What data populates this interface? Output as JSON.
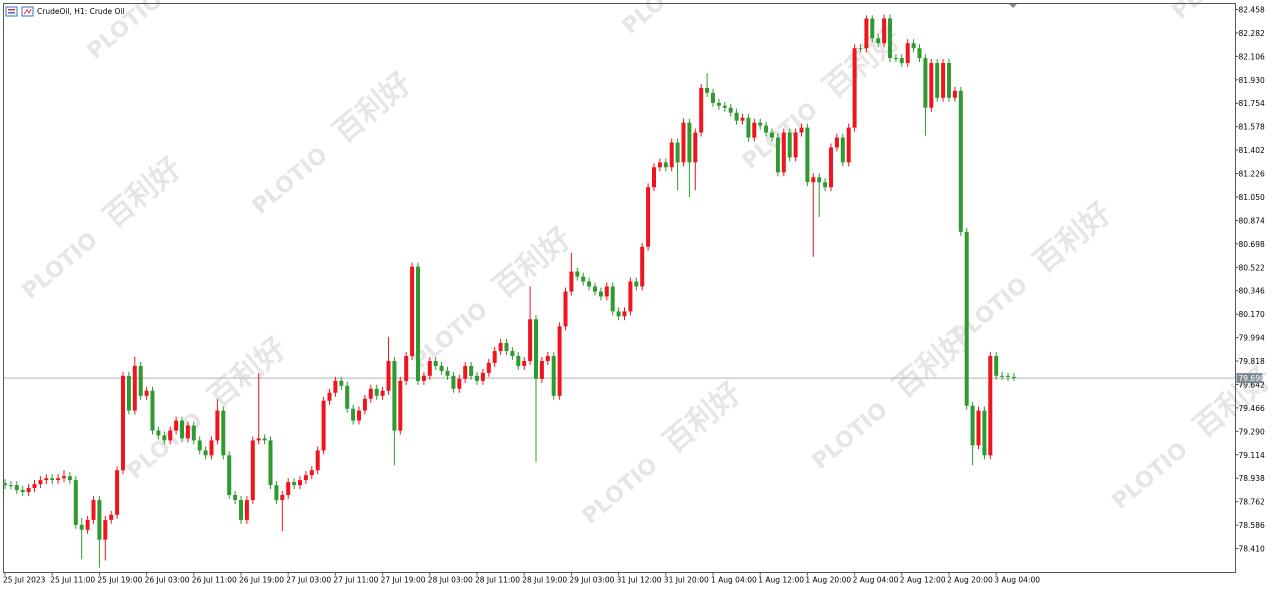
{
  "chart_data": {
    "type": "candlestick",
    "title": "CrudeOil, H1:  Crude Oil",
    "watermarks": [
      "PLOTIO",
      "百利好"
    ],
    "up_color": "#f0141e",
    "down_color": "#2f9a2f",
    "current_price": {
      "value": 79.69,
      "label": "79.690"
    },
    "ylim": [
      78.23,
      82.503
    ],
    "yticks": [
      82.458,
      82.282,
      82.106,
      {
        "value": 81.93,
        "label": "81.930"
      },
      81.754,
      81.578,
      81.402,
      81.226,
      {
        "value": 81.05,
        "label": "81.050"
      },
      80.874,
      80.698,
      80.522,
      80.346,
      {
        "value": 80.17,
        "label": "80.170"
      },
      79.994,
      79.818,
      79.642,
      79.466,
      {
        "value": 79.29,
        "label": "79.290"
      },
      79.114,
      78.938,
      78.762,
      78.586,
      {
        "value": 78.41,
        "label": "78.410"
      }
    ],
    "grid": false,
    "categories": [
      "25 Jul 2023",
      null,
      null,
      null,
      null,
      null,
      null,
      null,
      "25 Jul 11:00",
      null,
      null,
      null,
      null,
      null,
      null,
      null,
      "25 Jul 19:00",
      null,
      null,
      null,
      null,
      null,
      null,
      null,
      "26 Jul 03:00",
      null,
      null,
      null,
      null,
      null,
      null,
      null,
      "26 Jul 11:00",
      null,
      null,
      null,
      null,
      null,
      null,
      null,
      "26 Jul 19:00",
      null,
      null,
      null,
      null,
      null,
      null,
      null,
      "27 Jul 03:00",
      null,
      null,
      null,
      null,
      null,
      null,
      null,
      "27 Jul 11:00",
      null,
      null,
      null,
      null,
      null,
      null,
      null,
      "27 Jul 19:00",
      null,
      null,
      null,
      null,
      null,
      null,
      null,
      "28 Jul 03:00",
      null,
      null,
      null,
      null,
      null,
      null,
      null,
      "28 Jul 11:00",
      null,
      null,
      null,
      null,
      null,
      null,
      null,
      "28 Jul 19:00",
      null,
      null,
      null,
      null,
      null,
      null,
      null,
      "29 Jul 03:00",
      null,
      null,
      null,
      null,
      null,
      null,
      null,
      "31 Jul 12:00",
      null,
      null,
      null,
      null,
      null,
      null,
      null,
      "31 Jul 20:00",
      null,
      null,
      null,
      null,
      null,
      null,
      null,
      "1 Aug 04:00",
      null,
      null,
      null,
      null,
      null,
      null,
      null,
      "1 Aug 12:00",
      null,
      null,
      null,
      null,
      null,
      null,
      null,
      "1 Aug 20:00",
      null,
      null,
      null,
      null,
      null,
      null,
      null,
      "2 Aug 04:00",
      null,
      null,
      null,
      null,
      null,
      null,
      null,
      "2 Aug 12:00",
      null,
      null,
      null,
      null,
      null,
      null,
      null,
      "2 Aug 20:00",
      null,
      null,
      null,
      null,
      null,
      null,
      null,
      "3 Aug 04:00",
      null,
      null,
      null
    ],
    "open": [
      78.9,
      78.886,
      78.886,
      78.849,
      78.834,
      78.864,
      78.894,
      78.924,
      78.938,
      78.924,
      78.938,
      78.953,
      78.924,
      78.588,
      78.551,
      78.625,
      78.774,
      78.476,
      78.625,
      78.663,
      78.998,
      79.707,
      79.446,
      79.781,
      79.557,
      79.595,
      79.296,
      79.259,
      79.222,
      79.296,
      79.371,
      79.237,
      79.334,
      79.222,
      79.147,
      79.11,
      79.222,
      79.446,
      79.11,
      78.812,
      78.774,
      78.625,
      78.774,
      79.222,
      79.237,
      79.222,
      78.886,
      78.774,
      78.812,
      78.909,
      78.886,
      78.924,
      78.961,
      78.998,
      79.147,
      79.52,
      79.58,
      79.669,
      79.632,
      79.46,
      79.371,
      79.446,
      79.535,
      79.61,
      79.557,
      79.595,
      79.818,
      79.296,
      79.669,
      79.856,
      80.527,
      79.669,
      79.707,
      79.818,
      79.781,
      79.744,
      79.707,
      79.61,
      79.684,
      79.781,
      79.707,
      79.669,
      79.729,
      79.804,
      79.893,
      79.953,
      79.893,
      79.856,
      79.781,
      79.818,
      80.132,
      79.684,
      79.818,
      79.856,
      79.557,
      80.079,
      80.34,
      80.49,
      80.452,
      80.415,
      80.378,
      80.34,
      80.303,
      80.378,
      80.191,
      80.154,
      80.191,
      80.415,
      80.378,
      80.676,
      81.123,
      81.273,
      81.31,
      81.273,
      81.459,
      81.31,
      81.608,
      81.31,
      81.534,
      81.869,
      81.832,
      81.757,
      81.735,
      81.72,
      81.683,
      81.623,
      81.645,
      81.496,
      81.608,
      81.586,
      81.534,
      81.496,
      81.235,
      81.534,
      81.347,
      81.534,
      81.571,
      81.161,
      81.198,
      81.161,
      81.123,
      81.422,
      81.496,
      81.31,
      81.571,
      82.167,
      82.167,
      82.391,
      82.242,
      82.205,
      82.391,
      82.093,
      82.093,
      82.056,
      82.205,
      82.167,
      82.093,
      81.72,
      82.056,
      81.795,
      82.056,
      81.795,
      81.847,
      80.788,
      79.483,
      79.185,
      79.446,
      79.11,
      79.856,
      79.707,
      79.707,
      79.699
    ],
    "high": [
      78.93,
      78.916,
      78.916,
      78.879,
      78.894,
      78.924,
      78.954,
      78.968,
      78.968,
      78.968,
      79.0,
      78.983,
      78.954,
      78.64,
      78.655,
      78.804,
      78.804,
      78.655,
      78.693,
      79.028,
      79.737,
      79.737,
      79.85,
      79.811,
      79.625,
      79.625,
      79.326,
      79.289,
      79.326,
      79.401,
      79.401,
      79.364,
      79.364,
      79.252,
      79.177,
      79.252,
      79.535,
      79.476,
      79.14,
      78.842,
      78.804,
      78.804,
      79.252,
      79.729,
      79.267,
      79.252,
      78.916,
      78.842,
      78.939,
      78.939,
      78.954,
      78.991,
      79.028,
      79.177,
      79.55,
      79.61,
      79.699,
      79.699,
      79.662,
      79.49,
      79.476,
      79.565,
      79.64,
      79.64,
      79.625,
      80.0,
      79.848,
      79.699,
      79.886,
      80.557,
      80.557,
      79.737,
      79.848,
      79.848,
      79.811,
      79.774,
      79.737,
      79.714,
      79.811,
      79.811,
      79.737,
      79.759,
      79.834,
      79.923,
      79.983,
      79.983,
      79.923,
      79.886,
      79.848,
      80.378,
      80.162,
      79.848,
      79.886,
      79.886,
      80.109,
      80.37,
      80.63,
      80.52,
      80.482,
      80.445,
      80.408,
      80.37,
      80.408,
      80.408,
      80.221,
      80.221,
      80.445,
      80.445,
      80.706,
      81.153,
      81.303,
      81.34,
      81.34,
      81.489,
      81.489,
      81.638,
      81.638,
      81.564,
      81.899,
      81.981,
      81.862,
      81.787,
      81.765,
      81.75,
      81.713,
      81.675,
      81.675,
      81.638,
      81.638,
      81.616,
      81.564,
      81.526,
      81.564,
      81.564,
      81.564,
      81.601,
      81.601,
      81.228,
      81.228,
      81.191,
      81.452,
      81.526,
      81.526,
      81.601,
      82.197,
      82.197,
      82.414,
      82.414,
      82.272,
      82.421,
      82.421,
      82.123,
      82.123,
      82.235,
      82.235,
      82.197,
      82.123,
      82.086,
      82.086,
      82.086,
      82.086,
      81.877,
      81.877,
      80.818,
      79.513,
      79.476,
      79.476,
      79.886,
      79.886,
      79.737,
      79.729,
      79.729
    ],
    "low": [
      78.856,
      78.856,
      78.819,
      78.804,
      78.804,
      78.834,
      78.864,
      78.894,
      78.894,
      78.894,
      78.908,
      78.894,
      78.558,
      78.33,
      78.521,
      78.595,
      78.267,
      78.32,
      78.595,
      78.633,
      78.968,
      79.416,
      79.416,
      79.527,
      79.527,
      79.266,
      79.229,
      79.192,
      79.192,
      79.266,
      79.207,
      79.207,
      79.192,
      79.117,
      79.08,
      79.08,
      79.192,
      79.08,
      78.782,
      78.744,
      78.595,
      78.595,
      78.744,
      79.192,
      79.192,
      78.856,
      78.744,
      78.54,
      78.782,
      78.856,
      78.856,
      78.894,
      78.931,
      78.968,
      79.117,
      79.49,
      79.55,
      79.602,
      79.43,
      79.341,
      79.341,
      79.416,
      79.505,
      79.527,
      79.527,
      79.565,
      79.035,
      79.266,
      79.639,
      79.826,
      79.639,
      79.639,
      79.677,
      79.751,
      79.714,
      79.677,
      79.58,
      79.58,
      79.654,
      79.677,
      79.639,
      79.639,
      79.699,
      79.774,
      79.863,
      79.863,
      79.826,
      79.751,
      79.751,
      79.788,
      79.058,
      79.654,
      79.788,
      79.527,
      79.527,
      80.049,
      80.31,
      80.422,
      80.385,
      80.348,
      80.31,
      80.273,
      80.273,
      80.161,
      80.124,
      80.124,
      80.161,
      80.348,
      80.348,
      80.646,
      81.093,
      81.243,
      81.243,
      81.243,
      81.1,
      81.28,
      81.05,
      81.1,
      81.504,
      81.802,
      81.727,
      81.705,
      81.69,
      81.653,
      81.593,
      81.593,
      81.466,
      81.466,
      81.556,
      81.504,
      81.466,
      81.205,
      81.205,
      81.317,
      81.317,
      81.504,
      81.131,
      80.601,
      80.9,
      81.093,
      81.093,
      81.392,
      81.28,
      81.28,
      81.541,
      82.137,
      82.137,
      82.212,
      82.175,
      82.175,
      82.063,
      82.063,
      82.026,
      82.026,
      82.137,
      82.063,
      81.511,
      81.69,
      81.765,
      81.765,
      81.765,
      81.765,
      80.758,
      79.453,
      79.035,
      79.155,
      79.08,
      79.08,
      79.677,
      79.677,
      79.669,
      79.669
    ],
    "close": [
      78.886,
      78.886,
      78.849,
      78.834,
      78.864,
      78.894,
      78.924,
      78.938,
      78.924,
      78.938,
      78.953,
      78.924,
      78.588,
      78.551,
      78.625,
      78.774,
      78.476,
      78.625,
      78.663,
      78.998,
      79.707,
      79.446,
      79.781,
      79.557,
      79.595,
      79.296,
      79.259,
      79.222,
      79.296,
      79.371,
      79.237,
      79.334,
      79.222,
      79.147,
      79.11,
      79.222,
      79.446,
      79.11,
      78.812,
      78.774,
      78.625,
      78.774,
      79.222,
      79.237,
      79.222,
      78.886,
      78.774,
      78.812,
      78.909,
      78.886,
      78.924,
      78.961,
      78.998,
      79.147,
      79.52,
      79.58,
      79.669,
      79.632,
      79.46,
      79.371,
      79.446,
      79.535,
      79.61,
      79.557,
      79.595,
      79.818,
      79.296,
      79.669,
      79.856,
      80.527,
      79.669,
      79.707,
      79.818,
      79.781,
      79.744,
      79.707,
      79.61,
      79.684,
      79.781,
      79.707,
      79.669,
      79.729,
      79.804,
      79.893,
      79.953,
      79.893,
      79.856,
      79.781,
      79.818,
      80.132,
      79.684,
      79.818,
      79.856,
      79.557,
      80.079,
      80.34,
      80.49,
      80.452,
      80.415,
      80.378,
      80.34,
      80.303,
      80.378,
      80.191,
      80.154,
      80.191,
      80.415,
      80.378,
      80.676,
      81.123,
      81.273,
      81.31,
      81.273,
      81.459,
      81.31,
      81.608,
      81.31,
      81.534,
      81.869,
      81.832,
      81.757,
      81.735,
      81.72,
      81.683,
      81.623,
      81.645,
      81.496,
      81.608,
      81.586,
      81.534,
      81.496,
      81.235,
      81.534,
      81.347,
      81.534,
      81.571,
      81.161,
      81.198,
      81.161,
      81.123,
      81.422,
      81.496,
      81.31,
      81.571,
      82.167,
      82.167,
      82.391,
      82.242,
      82.205,
      82.391,
      82.093,
      82.093,
      82.056,
      82.205,
      82.167,
      82.093,
      81.72,
      82.056,
      81.795,
      82.056,
      81.795,
      81.847,
      80.788,
      79.483,
      79.185,
      79.446,
      79.11,
      79.856,
      79.707,
      79.707,
      79.699,
      79.692
    ]
  }
}
